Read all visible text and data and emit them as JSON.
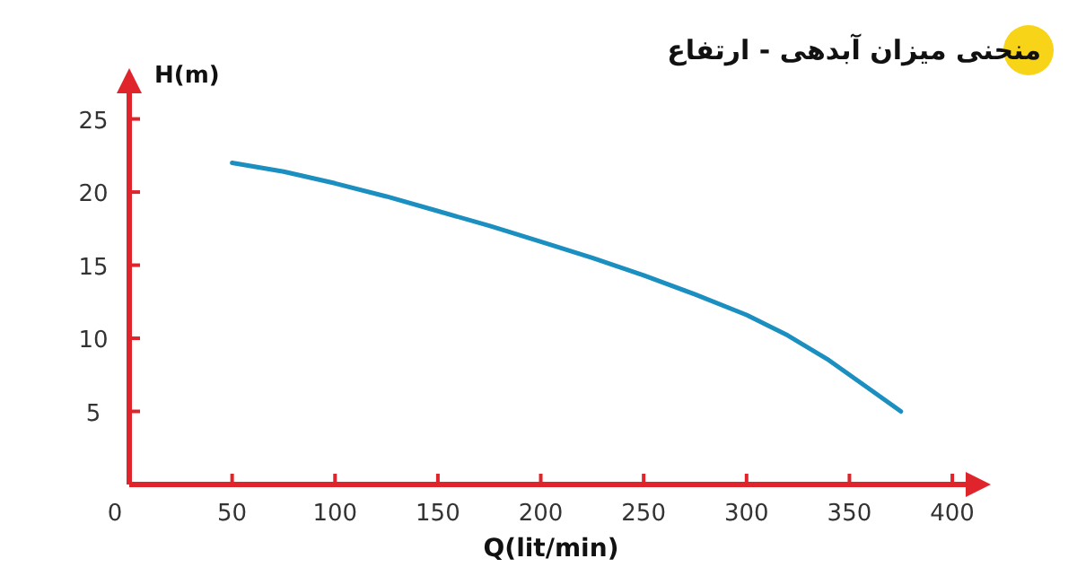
{
  "chart_data": {
    "type": "line",
    "title": "منحنی میزان آبدهی - ارتفاع",
    "xlabel": "Q(lit/min)",
    "ylabel": "H(m)",
    "x": [
      50,
      75,
      100,
      125,
      150,
      175,
      200,
      225,
      250,
      275,
      300,
      320,
      340,
      360,
      375
    ],
    "series": [
      {
        "color": "#1a8fc0",
        "values": [
          22,
          21.4,
          20.6,
          19.7,
          18.7,
          17.7,
          16.6,
          15.5,
          14.3,
          13.0,
          11.6,
          10.2,
          8.5,
          6.5,
          5.0
        ]
      }
    ],
    "xlim": [
      0,
      410
    ],
    "ylim": [
      0,
      27
    ],
    "xticks": [
      {
        "value": 0,
        "label": "0"
      },
      50,
      100,
      150,
      200,
      250,
      300,
      350,
      400
    ],
    "yticks": [
      5,
      10,
      15,
      20,
      25
    ],
    "grid": false,
    "marker": "none",
    "line_style": "solid"
  }
}
